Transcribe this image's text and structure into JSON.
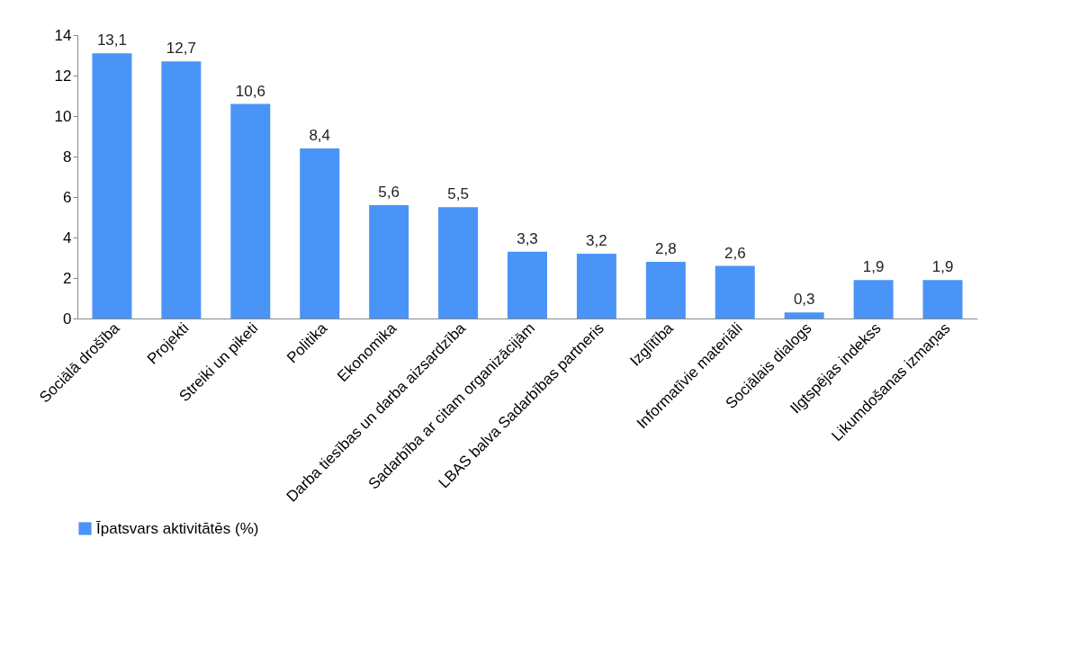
{
  "chart_data": {
    "type": "bar",
    "categories": [
      "Sociālā drošība",
      "Projekti",
      "Streiki un piketi",
      "Politika",
      "Ekonomika",
      "Darba tiesības un darba aizsardzība",
      "Sadarbība ar citam organizācijām",
      "LBAS balva Sadarbības partneris",
      "Izglītība",
      "Informatīvie materiāli",
      "Sociālais dialogs",
      "Ilgtspējas indekss",
      "Likumdošanas izmaņas"
    ],
    "series": [
      {
        "name": "Īpatsvars aktivitātēs (%)",
        "color": "#4a94f7",
        "values": [
          13.1,
          12.7,
          10.6,
          8.4,
          5.6,
          5.5,
          3.3,
          3.2,
          2.8,
          2.6,
          0.3,
          1.9,
          1.9
        ],
        "value_labels": [
          "13,1",
          "12,7",
          "10,6",
          "8,4",
          "5,6",
          "5,5",
          "3,3",
          "3,2",
          "2,8",
          "2,6",
          "0,3",
          "1,9",
          "1,9"
        ]
      }
    ],
    "ylim": [
      0,
      14
    ],
    "yticks": [
      0,
      2,
      4,
      6,
      8,
      10,
      12,
      14
    ],
    "grid": false,
    "legend": "bottom"
  }
}
